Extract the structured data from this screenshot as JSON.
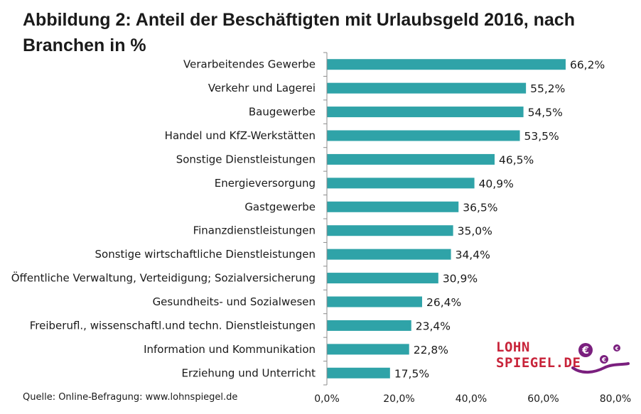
{
  "chart_data": {
    "type": "bar",
    "orientation": "horizontal",
    "title": "Abbildung 2: Anteil der Beschäftigten mit Urlaubsgeld 2016, nach Branchen in %",
    "categories": [
      "Verarbeitendes Gewerbe",
      "Verkehr und Lagerei",
      "Baugewerbe",
      "Handel und KfZ-Werkstätten",
      "Sonstige Dienstleistungen",
      "Energieversorgung",
      "Gastgewerbe",
      "Finanzdienstleistungen",
      "Sonstige wirtschaftliche Dienstleistungen",
      "Öffentliche Verwaltung, Verteidigung; Sozialversicherung",
      "Gesundheits- und Sozialwesen",
      "Freiberufl., wissenschaftl.und techn. Dienstleistungen",
      "Information und Kommunikation",
      "Erziehung und Unterricht"
    ],
    "values": [
      66.2,
      55.2,
      54.5,
      53.5,
      46.5,
      40.9,
      36.5,
      35.0,
      34.4,
      30.9,
      26.4,
      23.4,
      22.8,
      17.5
    ],
    "value_labels": [
      "66,2%",
      "55,2%",
      "54,5%",
      "53,5%",
      "46,5%",
      "40,9%",
      "36,5%",
      "35,0%",
      "34,4%",
      "30,9%",
      "26,4%",
      "23,4%",
      "22,8%",
      "17,5%"
    ],
    "xlim": [
      0,
      80
    ],
    "x_ticks": [
      0,
      20,
      40,
      60,
      80
    ],
    "x_tick_labels": [
      "0,0%",
      "20,0%",
      "40,0%",
      "60,0%",
      "80,0%"
    ],
    "xlabel": "",
    "ylabel": "",
    "grid": false,
    "legend": "none",
    "bar_color": "#2fa3a8"
  },
  "source": "Quelle:  Online-Befragung:  www.lohnspiegel.de",
  "logo": {
    "line1": "LOHN",
    "line2": "SPIEGEL.DE",
    "text_color": "#c8243a",
    "accent_color": "#7a1f7e"
  }
}
